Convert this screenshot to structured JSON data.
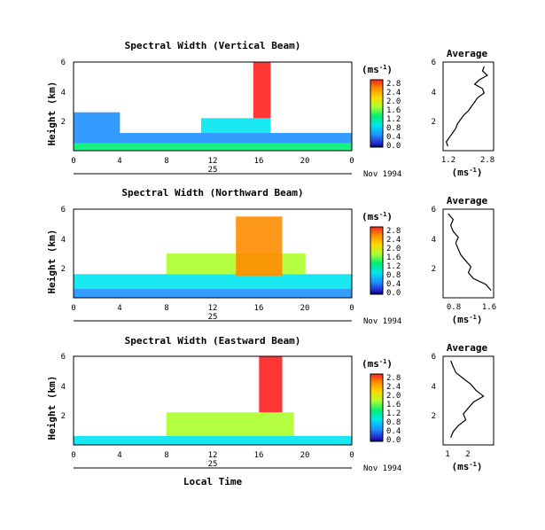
{
  "figure": {
    "xlabel": "Local Time",
    "date_label": "Nov 1994",
    "day_label": "25",
    "unit_label": "(ms",
    "unit_sup": "-1",
    "avg_title": "Average",
    "avg_xlabel": "(ms",
    "avg_xlabel_sup": "-1"
  },
  "colorbar": {
    "ticks": [
      "2.8",
      "2.4",
      "2.0",
      "1.6",
      "1.2",
      "0.8",
      "0.4",
      "0.0"
    ],
    "colors": [
      "#ff2020",
      "#ff8c00",
      "#ffd700",
      "#adff2f",
      "#00ee76",
      "#00e5ee",
      "#1e90ff",
      "#2222cc",
      "#000060"
    ]
  },
  "chart_data": [
    {
      "type": "heatmap",
      "title": "Spectral Width (Vertical Beam)",
      "ylabel": "Height (km)",
      "xlim": [
        0,
        24
      ],
      "ylim": [
        0,
        6
      ],
      "xticks": [
        "0",
        "4",
        "8",
        "12",
        "16",
        "20",
        "0"
      ],
      "yticks": [
        "6",
        "4",
        "2"
      ],
      "zlim": [
        0,
        2.8
      ],
      "layers": [
        {
          "x0": 0,
          "x1": 24,
          "y0": 0,
          "y1": 0.5,
          "z": 1.5
        },
        {
          "x0": 0,
          "x1": 24,
          "y0": 0.5,
          "y1": 1.2,
          "z": 0.8
        },
        {
          "x0": 0,
          "x1": 4,
          "y0": 1.2,
          "y1": 2.6,
          "z": 0.6
        },
        {
          "x0": 11,
          "x1": 17,
          "y0": 1.2,
          "y1": 2.2,
          "z": 1.2
        },
        {
          "x0": 15.5,
          "x1": 17,
          "y0": 2.2,
          "y1": 6,
          "z": 2.8
        }
      ],
      "average": {
        "xlim": [
          1.2,
          2.8
        ],
        "xticks": [
          "1.2",
          "2.8"
        ],
        "yticks": [
          "6",
          "4",
          "2"
        ],
        "profile_h": [
          0.3,
          0.6,
          0.9,
          1.2,
          1.5,
          1.8,
          2.1,
          2.4,
          2.7,
          3.0,
          3.3,
          3.6,
          3.9,
          4.2,
          4.5,
          4.8,
          5.1,
          5.4,
          5.7
        ],
        "profile_v": [
          1.35,
          1.3,
          1.4,
          1.5,
          1.6,
          1.65,
          1.75,
          1.85,
          2.0,
          2.1,
          2.2,
          2.3,
          2.5,
          2.45,
          2.2,
          2.35,
          2.6,
          2.45,
          2.5
        ]
      }
    },
    {
      "type": "heatmap",
      "title": "Spectral Width (Northward Beam)",
      "ylabel": "Height (km)",
      "xlim": [
        0,
        24
      ],
      "ylim": [
        0,
        6
      ],
      "xticks": [
        "0",
        "4",
        "8",
        "12",
        "16",
        "20",
        "0"
      ],
      "yticks": [
        "6",
        "4",
        "2"
      ],
      "zlim": [
        0,
        2.8
      ],
      "layers": [
        {
          "x0": 0,
          "x1": 24,
          "y0": 0,
          "y1": 0.6,
          "z": 0.8
        },
        {
          "x0": 0,
          "x1": 24,
          "y0": 0.6,
          "y1": 1.6,
          "z": 1.2
        },
        {
          "x0": 8,
          "x1": 20,
          "y0": 1.6,
          "y1": 3.0,
          "z": 1.6
        },
        {
          "x0": 14,
          "x1": 18,
          "y0": 1.5,
          "y1": 5.5,
          "z": 2.6
        }
      ],
      "average": {
        "xlim": [
          0.6,
          1.6
        ],
        "xticks": [
          "0.8",
          "1.6"
        ],
        "yticks": [
          "6",
          "4",
          "2"
        ],
        "profile_h": [
          0.5,
          0.9,
          1.3,
          1.7,
          2.1,
          2.5,
          2.9,
          3.3,
          3.7,
          4.1,
          4.5,
          4.9,
          5.3,
          5.7
        ],
        "profile_v": [
          1.55,
          1.45,
          1.2,
          1.1,
          1.15,
          1.05,
          0.95,
          0.9,
          0.85,
          0.9,
          0.8,
          0.75,
          0.8,
          0.7
        ]
      }
    },
    {
      "type": "heatmap",
      "title": "Spectral Width (Eastward Beam)",
      "ylabel": "Height (km)",
      "xlim": [
        0,
        24
      ],
      "ylim": [
        0,
        6
      ],
      "xticks": [
        "0",
        "4",
        "8",
        "12",
        "16",
        "20",
        "0"
      ],
      "yticks": [
        "6",
        "4",
        "2"
      ],
      "zlim": [
        0,
        2.8
      ],
      "layers": [
        {
          "x0": 0,
          "x1": 24,
          "y0": 0,
          "y1": 0.6,
          "z": 1.0
        },
        {
          "x0": 8,
          "x1": 19,
          "y0": 0.6,
          "y1": 2.2,
          "z": 1.6
        },
        {
          "x0": 16,
          "x1": 18,
          "y0": 2.2,
          "y1": 6,
          "z": 2.8
        }
      ],
      "average": {
        "xlim": [
          1,
          3
        ],
        "xticks": [
          "1",
          "2"
        ],
        "yticks": [
          "6",
          "4",
          "2"
        ],
        "profile_h": [
          0.5,
          0.9,
          1.3,
          1.7,
          2.1,
          2.5,
          2.9,
          3.3,
          3.7,
          4.1,
          4.5,
          4.9,
          5.3,
          5.7
        ],
        "profile_v": [
          1.3,
          1.4,
          1.6,
          1.9,
          1.8,
          2.0,
          2.2,
          2.6,
          2.3,
          2.1,
          1.8,
          1.5,
          1.4,
          1.3
        ]
      }
    }
  ]
}
